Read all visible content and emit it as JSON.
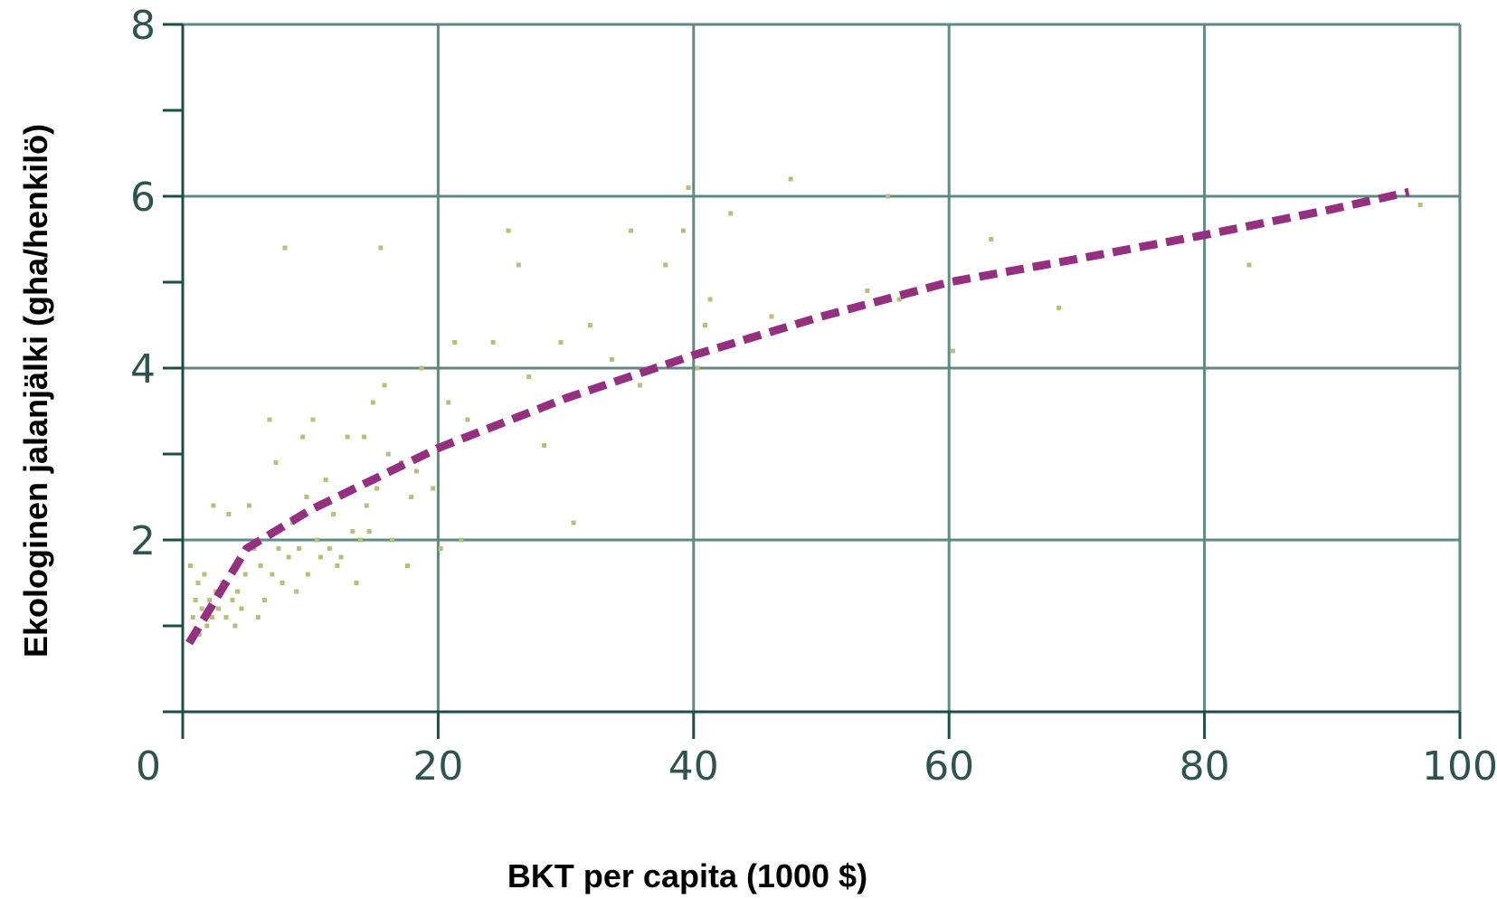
{
  "chart_data": {
    "type": "scatter",
    "title": "",
    "xlabel": "BKT per capita (1000 $)",
    "ylabel": "Ekologinen jalanjälki (gha/henkilö)",
    "xlim": [
      0,
      100
    ],
    "ylim": [
      0,
      8
    ],
    "x_ticks": [
      0,
      20,
      40,
      60,
      80,
      100
    ],
    "y_ticks": [
      2,
      4,
      6,
      8
    ],
    "grid": true,
    "legend": "none",
    "colors": {
      "points": "#b9be7a",
      "trend": "#94307f",
      "grid": "#5f8a84",
      "axis": "#1e4c47"
    },
    "points": [
      [
        0.6,
        1.7
      ],
      [
        0.8,
        1.1
      ],
      [
        1.0,
        1.3
      ],
      [
        1.2,
        1.5
      ],
      [
        1.3,
        0.9
      ],
      [
        1.5,
        1.2
      ],
      [
        1.7,
        1.6
      ],
      [
        1.9,
        1.0
      ],
      [
        2.1,
        1.3
      ],
      [
        2.3,
        1.1
      ],
      [
        2.4,
        2.4
      ],
      [
        2.6,
        1.4
      ],
      [
        2.8,
        1.2
      ],
      [
        3.1,
        1.5
      ],
      [
        3.4,
        1.1
      ],
      [
        3.6,
        2.3
      ],
      [
        3.9,
        1.3
      ],
      [
        4.1,
        1.0
      ],
      [
        4.3,
        1.4
      ],
      [
        4.6,
        1.2
      ],
      [
        4.9,
        1.6
      ],
      [
        5.2,
        2.4
      ],
      [
        5.6,
        1.9
      ],
      [
        5.9,
        1.1
      ],
      [
        6.1,
        1.7
      ],
      [
        6.4,
        1.3
      ],
      [
        6.8,
        3.4
      ],
      [
        7.0,
        1.6
      ],
      [
        7.3,
        2.9
      ],
      [
        7.5,
        1.9
      ],
      [
        7.8,
        1.5
      ],
      [
        8.0,
        5.4
      ],
      [
        8.3,
        1.8
      ],
      [
        8.6,
        2.2
      ],
      [
        8.9,
        1.4
      ],
      [
        9.1,
        1.9
      ],
      [
        9.4,
        3.2
      ],
      [
        9.7,
        2.5
      ],
      [
        9.8,
        1.6
      ],
      [
        10.2,
        3.4
      ],
      [
        10.5,
        2.0
      ],
      [
        10.8,
        1.8
      ],
      [
        11.2,
        2.7
      ],
      [
        11.5,
        1.9
      ],
      [
        11.8,
        2.3
      ],
      [
        12.1,
        1.7
      ],
      [
        12.4,
        1.8
      ],
      [
        12.9,
        3.2
      ],
      [
        13.3,
        2.1
      ],
      [
        13.6,
        1.5
      ],
      [
        13.9,
        2.0
      ],
      [
        14.2,
        3.2
      ],
      [
        14.4,
        2.4
      ],
      [
        14.6,
        2.1
      ],
      [
        14.9,
        3.6
      ],
      [
        15.2,
        2.6
      ],
      [
        15.5,
        5.4
      ],
      [
        15.8,
        3.8
      ],
      [
        16.1,
        3.0
      ],
      [
        16.4,
        2.0
      ],
      [
        17.1,
        2.9
      ],
      [
        17.6,
        1.7
      ],
      [
        17.9,
        2.5
      ],
      [
        18.3,
        2.8
      ],
      [
        18.7,
        4.0
      ],
      [
        19.1,
        3.0
      ],
      [
        19.6,
        2.6
      ],
      [
        20.2,
        1.9
      ],
      [
        20.8,
        3.6
      ],
      [
        21.3,
        4.3
      ],
      [
        21.8,
        2.0
      ],
      [
        22.3,
        3.4
      ],
      [
        24.3,
        4.3
      ],
      [
        25.5,
        5.6
      ],
      [
        26.3,
        5.2
      ],
      [
        27.1,
        3.9
      ],
      [
        28.3,
        3.1
      ],
      [
        29.6,
        4.3
      ],
      [
        30.6,
        2.2
      ],
      [
        31.9,
        4.5
      ],
      [
        33.6,
        4.1
      ],
      [
        35.1,
        5.6
      ],
      [
        35.8,
        3.8
      ],
      [
        37.8,
        5.2
      ],
      [
        39.2,
        5.6
      ],
      [
        39.6,
        6.1
      ],
      [
        40.3,
        4.0
      ],
      [
        40.9,
        4.5
      ],
      [
        41.3,
        4.8
      ],
      [
        42.9,
        5.8
      ],
      [
        46.1,
        4.6
      ],
      [
        47.6,
        6.2
      ],
      [
        53.6,
        4.9
      ],
      [
        55.2,
        6.0
      ],
      [
        56.1,
        4.8
      ],
      [
        60.3,
        4.2
      ],
      [
        63.3,
        5.5
      ],
      [
        68.6,
        4.7
      ],
      [
        83.5,
        5.2
      ],
      [
        96.9,
        5.9
      ]
    ],
    "trend": {
      "type": "line",
      "style": "dashed",
      "x": [
        0.5,
        5,
        10,
        20,
        30,
        40,
        50,
        60,
        70,
        80,
        90,
        96
      ],
      "y": [
        0.8,
        1.9,
        2.35,
        3.07,
        3.65,
        4.15,
        4.6,
        5.0,
        5.27,
        5.55,
        5.85,
        6.05
      ]
    }
  }
}
